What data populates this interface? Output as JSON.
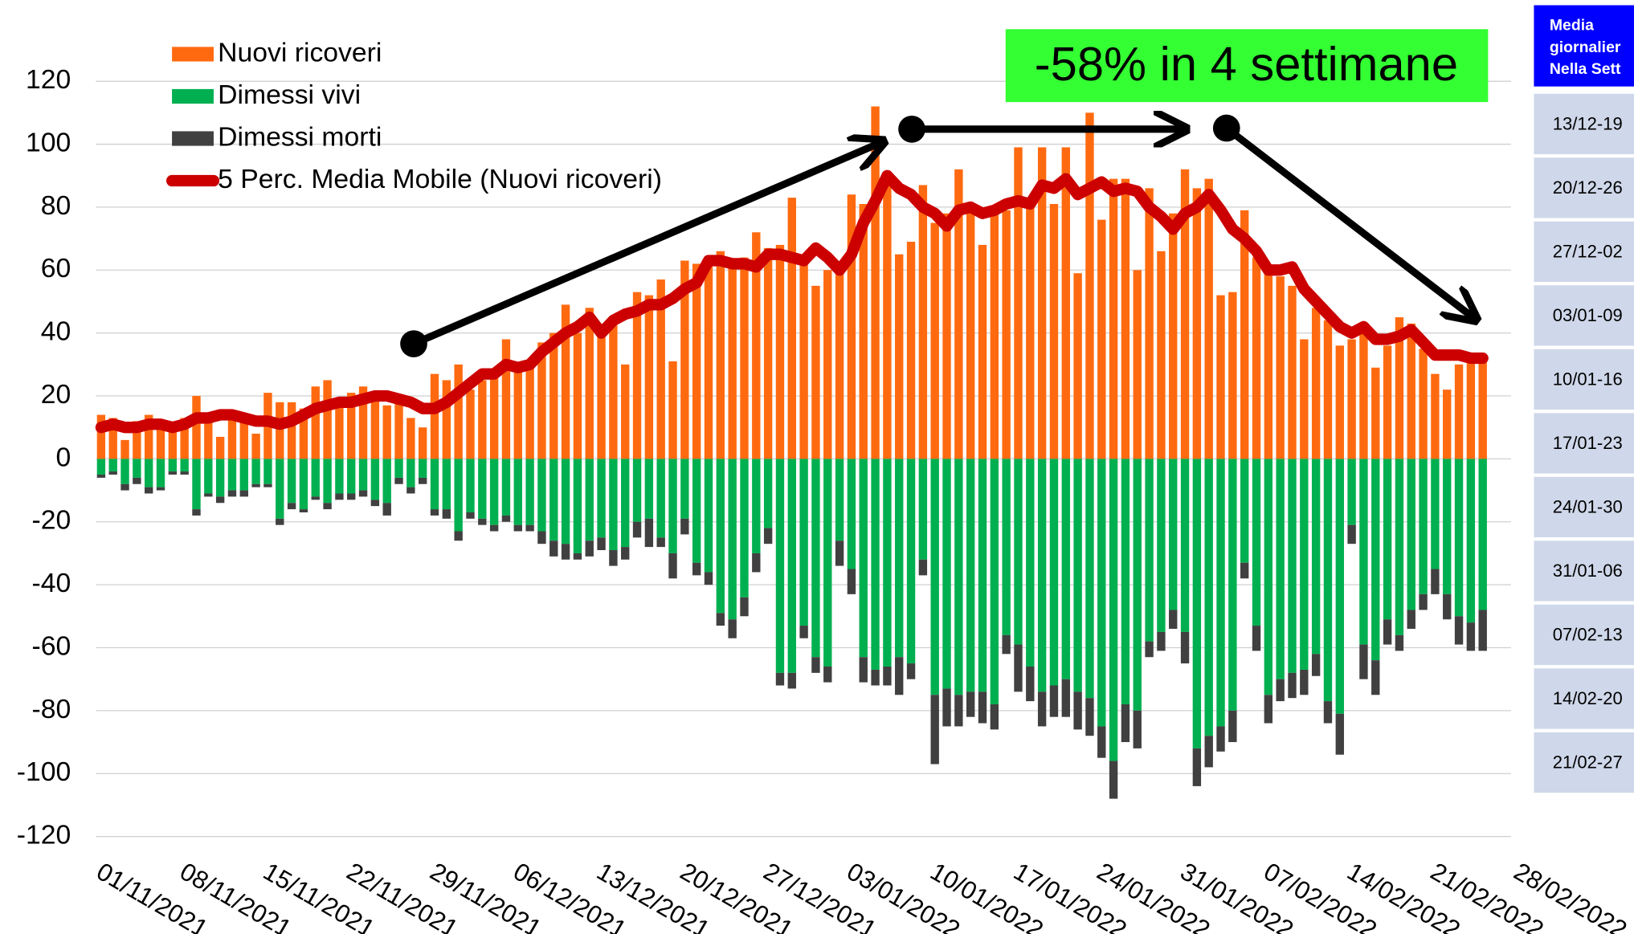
{
  "chart_data": {
    "type": "bar",
    "categories": [
      "01/11/2021",
      null,
      null,
      null,
      null,
      null,
      null,
      "08/11/2021",
      null,
      null,
      null,
      null,
      null,
      null,
      "15/11/2021",
      null,
      null,
      null,
      null,
      null,
      null,
      "22/11/2021",
      null,
      null,
      null,
      null,
      null,
      null,
      "29/11/2021",
      null,
      null,
      null,
      null,
      null,
      null,
      "06/12/2021",
      null,
      null,
      null,
      null,
      null,
      null,
      "13/12/2021",
      null,
      null,
      null,
      null,
      null,
      null,
      "20/12/2021",
      null,
      null,
      null,
      null,
      null,
      null,
      "27/12/2021",
      null,
      null,
      null,
      null,
      null,
      null,
      "03/01/2022",
      null,
      null,
      null,
      null,
      null,
      null,
      "10/01/2022",
      null,
      null,
      null,
      null,
      null,
      null,
      "17/01/2022",
      null,
      null,
      null,
      null,
      null,
      null,
      "24/01/2022",
      null,
      null,
      null,
      null,
      null,
      null,
      "31/01/2022",
      null,
      null,
      null,
      null,
      null,
      null,
      "07/02/2022",
      null,
      null,
      null,
      null,
      null,
      null,
      "14/02/2022",
      null,
      null,
      null,
      null,
      null,
      null,
      "21/02/2022",
      null,
      null,
      null,
      null,
      null,
      null,
      "28/02/2022"
    ],
    "series": [
      {
        "name": "Nuovi ricoveri",
        "color": "#ff6a10",
        "values": [
          14,
          13,
          6,
          12,
          14,
          12,
          11,
          13,
          20,
          13,
          7,
          14,
          13,
          8,
          21,
          18,
          18,
          16,
          23,
          25,
          18,
          21,
          23,
          19,
          17,
          18,
          13,
          10,
          27,
          25,
          30,
          22,
          25,
          28,
          38,
          30,
          29,
          37,
          40,
          49,
          40,
          48,
          42,
          43,
          30,
          53,
          52,
          57,
          31,
          63,
          62,
          63,
          66,
          63,
          64,
          72,
          67,
          68,
          83,
          63,
          55,
          60,
          60,
          84,
          81,
          112,
          87,
          65,
          69,
          87,
          75,
          78,
          92,
          80,
          68,
          78,
          79,
          99,
          82,
          99,
          81,
          99,
          59,
          110,
          76,
          89,
          89,
          60,
          86,
          66,
          78,
          92,
          86,
          89,
          52,
          53,
          79,
          64,
          60,
          58,
          55,
          38,
          48,
          44,
          36,
          38,
          40,
          29,
          36,
          45,
          43,
          35,
          27,
          22,
          30,
          32,
          31,
          null,
          null,
          null
        ]
      },
      {
        "name": "Dimessi vivi",
        "color": "#00b050",
        "values": [
          -5,
          -4,
          -8,
          -6,
          -9,
          -9,
          -4,
          -4,
          -16,
          -11,
          -12,
          -10,
          -10,
          -8,
          -8,
          -19,
          -14,
          -16,
          -12,
          -14,
          -11,
          -11,
          -10,
          -13,
          -14,
          -6,
          -9,
          -6,
          -16,
          -16,
          -23,
          -17,
          -19,
          -21,
          -18,
          -21,
          -21,
          -23,
          -26,
          -27,
          -30,
          -26,
          -25,
          -29,
          -28,
          -20,
          -19,
          -25,
          -30,
          -19,
          -33,
          -36,
          -49,
          -51,
          -44,
          -30,
          -22,
          -68,
          -68,
          -53,
          -63,
          -66,
          -26,
          -35,
          -63,
          -67,
          -66,
          -63,
          -65,
          -32,
          -75,
          -73,
          -75,
          -74,
          -74,
          -78,
          -56,
          -59,
          -66,
          -74,
          -72,
          -70,
          -74,
          -76,
          -85,
          -96,
          -78,
          -80,
          -58,
          -55,
          -48,
          -55,
          -92,
          -88,
          -85,
          -80,
          -33,
          -53,
          -75,
          -70,
          -68,
          -67,
          -62,
          -77,
          -81,
          -21,
          -59,
          -64,
          -51,
          -56,
          -48,
          -43,
          -35,
          -43,
          -50,
          -52,
          -48,
          null,
          null,
          null
        ]
      },
      {
        "name": "Dimessi morti",
        "color": "#404040",
        "values": [
          -1,
          -1,
          -2,
          -2,
          -2,
          -1,
          -1,
          -1,
          -2,
          -1,
          -2,
          -2,
          -2,
          -1,
          -1,
          -2,
          -2,
          -1,
          -1,
          -2,
          -2,
          -2,
          -2,
          -2,
          -4,
          -2,
          -2,
          -2,
          -2,
          -3,
          -3,
          -2,
          -2,
          -2,
          -2,
          -2,
          -2,
          -4,
          -5,
          -5,
          -2,
          -5,
          -4,
          -5,
          -4,
          -5,
          -9,
          -3,
          -8,
          -5,
          -4,
          -4,
          -4,
          -6,
          -6,
          -6,
          -5,
          -4,
          -5,
          -4,
          -5,
          -5,
          -8,
          -8,
          -8,
          -5,
          -6,
          -12,
          -5,
          -5,
          -22,
          -12,
          -10,
          -8,
          -10,
          -8,
          -6,
          -15,
          -11,
          -11,
          -10,
          -12,
          -12,
          -12,
          -10,
          -12,
          -12,
          -12,
          -5,
          -6,
          -6,
          -10,
          -12,
          -10,
          -8,
          -10,
          -5,
          -8,
          -9,
          -7,
          -8,
          -8,
          -7,
          -7,
          -13,
          -6,
          -11,
          -11,
          -8,
          -5,
          -6,
          -5,
          -8,
          -8,
          -9,
          -9,
          -13,
          null,
          null,
          null
        ]
      },
      {
        "name": "5 Perc. Media Mobile (Nuovi ricoveri)",
        "type": "line",
        "color": "#cc0000",
        "values": [
          10,
          11,
          10,
          10,
          11,
          11,
          10,
          11,
          13,
          13,
          14,
          14,
          13,
          12,
          12,
          11,
          12,
          14,
          16,
          17,
          18,
          18,
          19,
          20,
          20,
          19,
          18,
          16,
          16,
          18,
          21,
          24,
          27,
          27,
          30,
          29,
          30,
          34,
          37,
          40,
          42,
          45,
          40,
          44,
          46,
          47,
          49,
          49,
          51,
          54,
          56,
          63,
          63,
          62,
          62,
          61,
          65,
          65,
          64,
          63,
          67,
          64,
          60,
          65,
          75,
          82,
          90,
          86,
          84,
          80,
          78,
          74,
          79,
          80,
          78,
          79,
          81,
          82,
          81,
          87,
          86,
          89,
          84,
          86,
          88,
          85,
          86,
          85,
          80,
          77,
          73,
          78,
          80,
          84,
          79,
          73,
          70,
          66,
          60,
          60,
          61,
          54,
          50,
          46,
          42,
          40,
          42,
          38,
          38,
          39,
          41,
          37,
          33,
          33,
          33,
          32,
          32,
          null,
          null,
          null
        ]
      }
    ],
    "ylim": [
      -120,
      120
    ],
    "yticks": [
      -120,
      -100,
      -80,
      -60,
      -40,
      -20,
      0,
      20,
      40,
      60,
      80,
      100,
      120
    ],
    "grid": true,
    "stacked": true,
    "annotation": "-58% in 4 settimane"
  },
  "side_table": {
    "header": [
      "Media",
      "giornalier",
      "Nella Sett"
    ],
    "rows": [
      "13/12-19",
      "20/12-26",
      "27/12-02",
      "03/01-09",
      "10/01-16",
      "17/01-23",
      "24/01-30",
      "31/01-06",
      "07/02-13",
      "14/02-20",
      "21/02-27"
    ]
  }
}
